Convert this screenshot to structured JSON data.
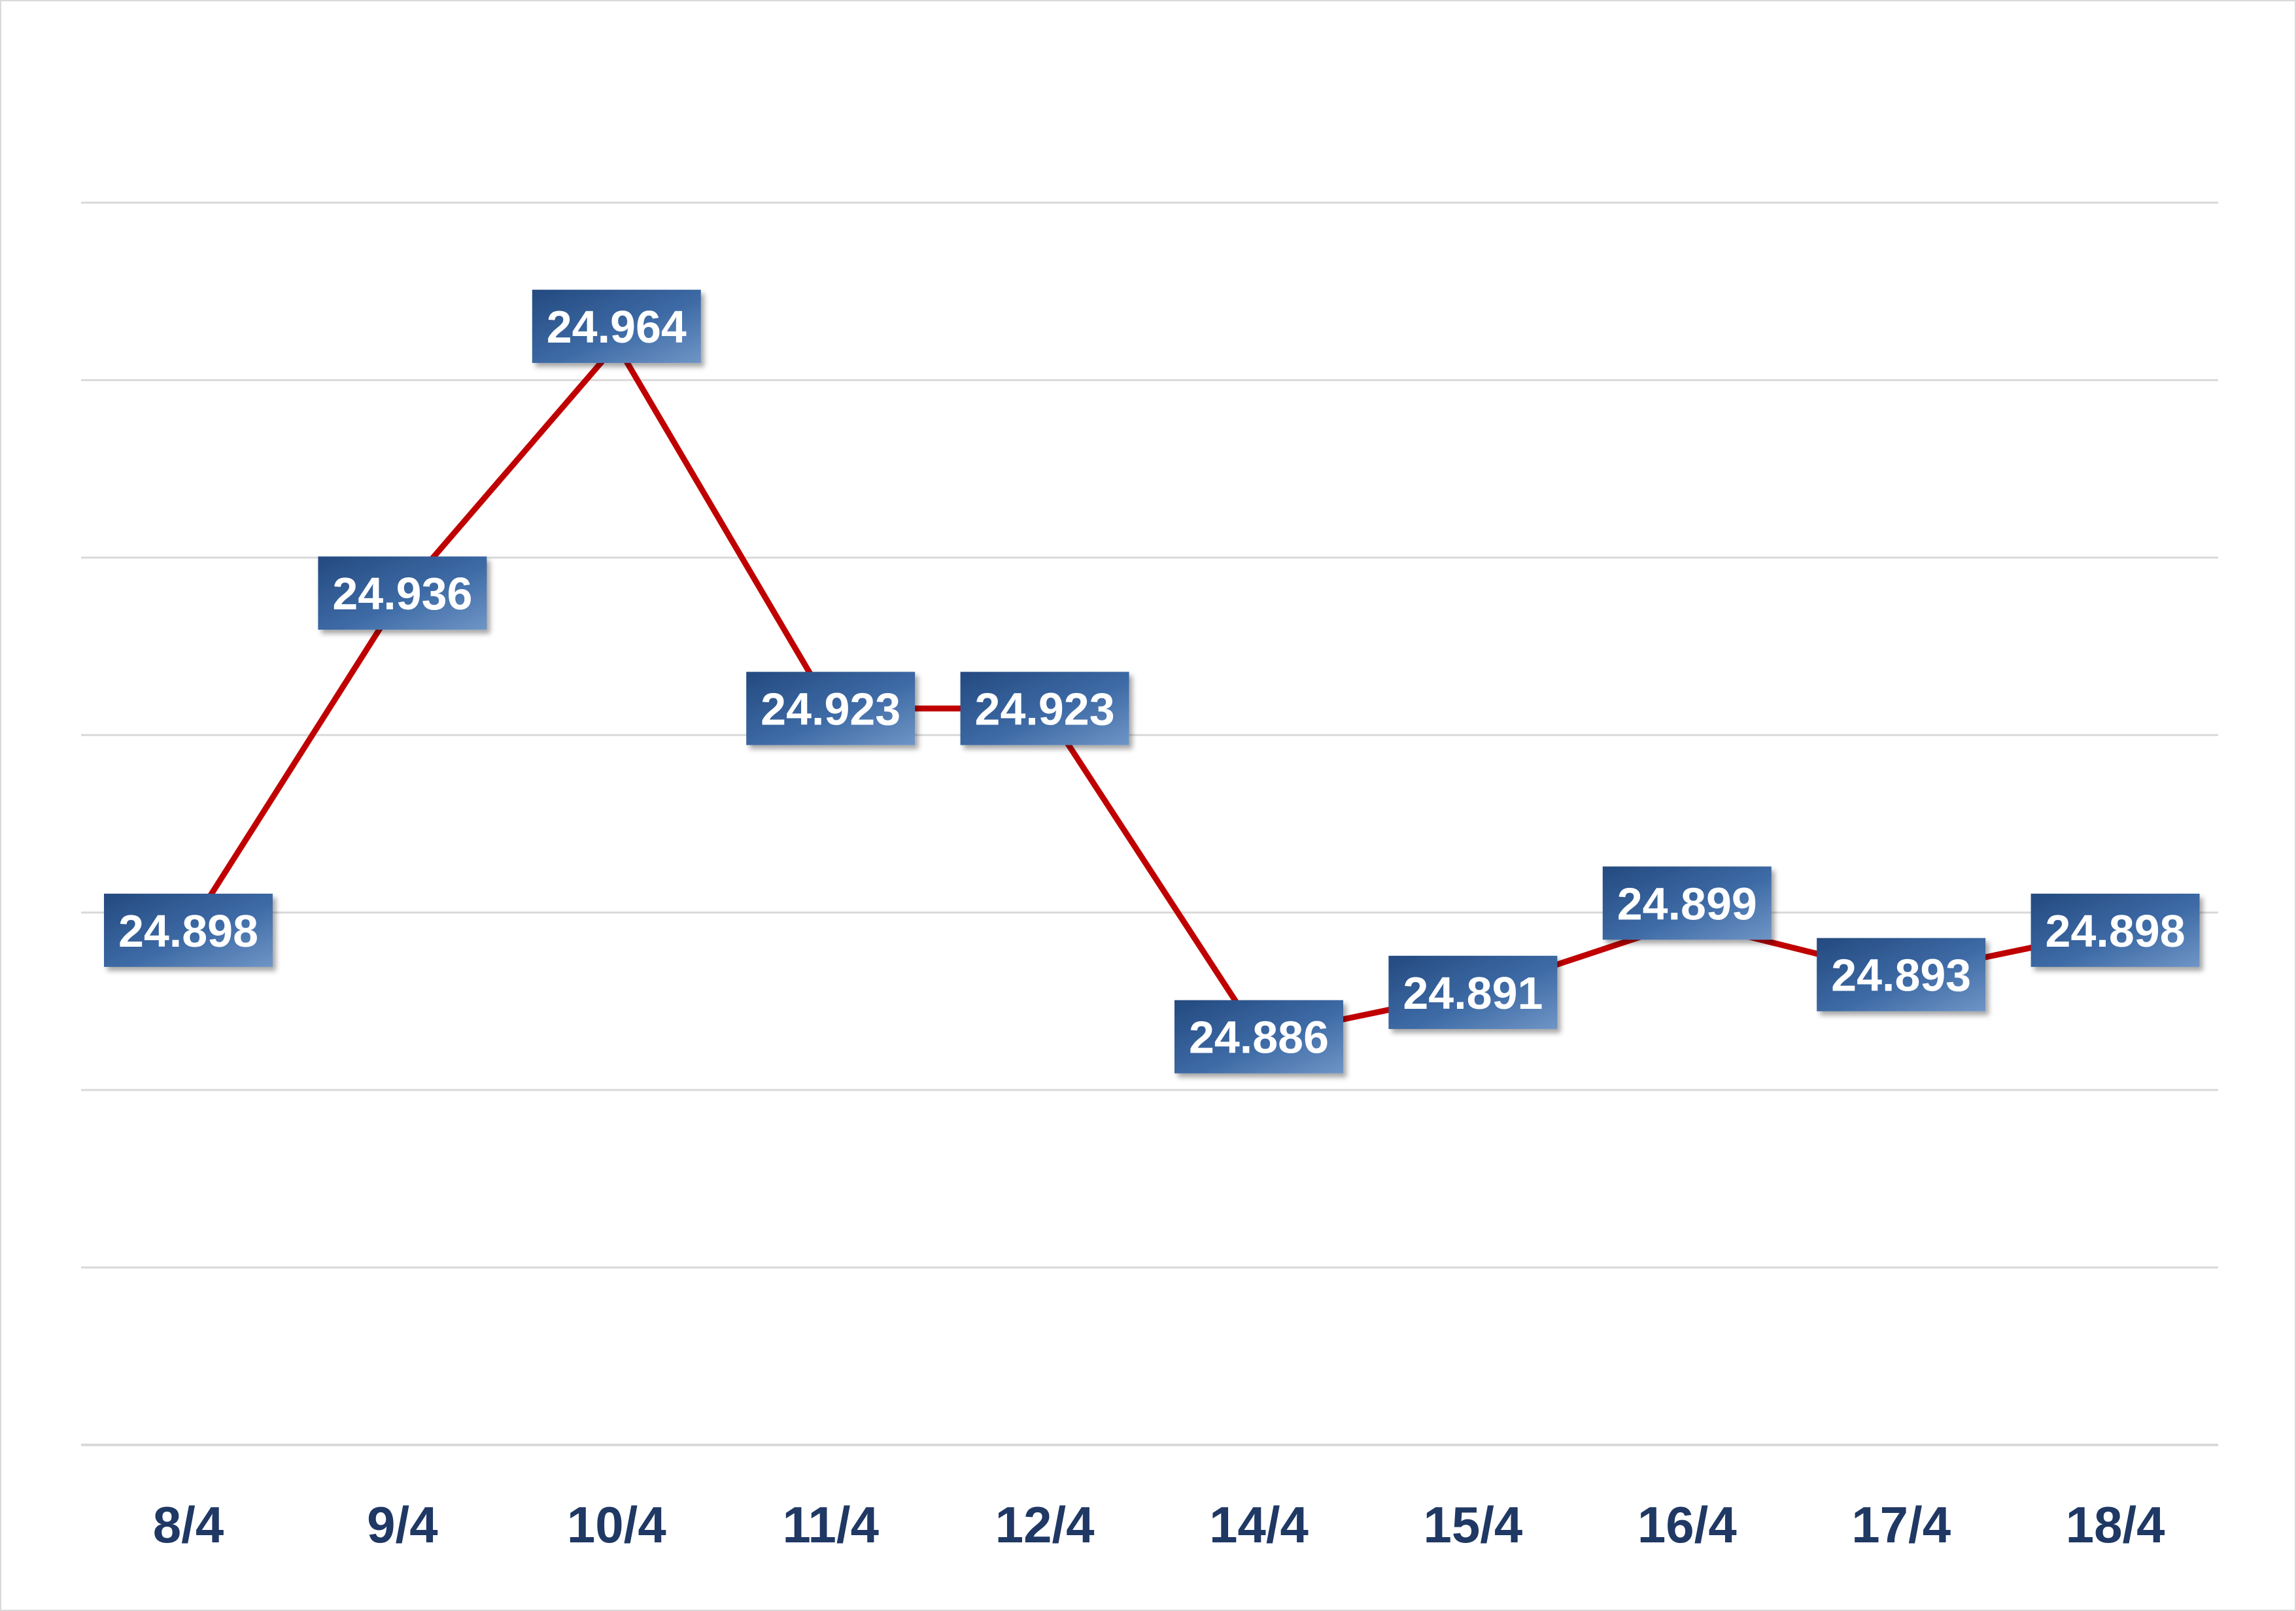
{
  "chart_data": {
    "type": "line",
    "title": "",
    "xlabel": "",
    "ylabel": "",
    "categories": [
      "8/4",
      "9/4",
      "10/4",
      "11/4",
      "12/4",
      "14/4",
      "15/4",
      "16/4",
      "17/4",
      "18/4"
    ],
    "series": [
      {
        "values": [
          24.898,
          24.936,
          24.964,
          24.923,
          24.923,
          24.886,
          24.891,
          24.899,
          24.893,
          24.898
        ],
        "labels": [
          "24.898",
          "24.936",
          "24.964",
          "24.923",
          "24.923",
          "24.886",
          "24.891",
          "24.899",
          "24.893",
          "24.898"
        ]
      }
    ],
    "ylim": [
      24.84,
      24.98
    ],
    "gridlines_y": [
      24.84,
      24.86,
      24.88,
      24.9,
      24.92,
      24.94,
      24.96,
      24.98
    ],
    "grid": true,
    "legend": "none",
    "colors": {
      "line": "#c00000",
      "label_box": "#3d6aa5",
      "label_text": "#ffffff",
      "tick_text": "#1f3864",
      "gridline": "#d9d9d9"
    }
  }
}
